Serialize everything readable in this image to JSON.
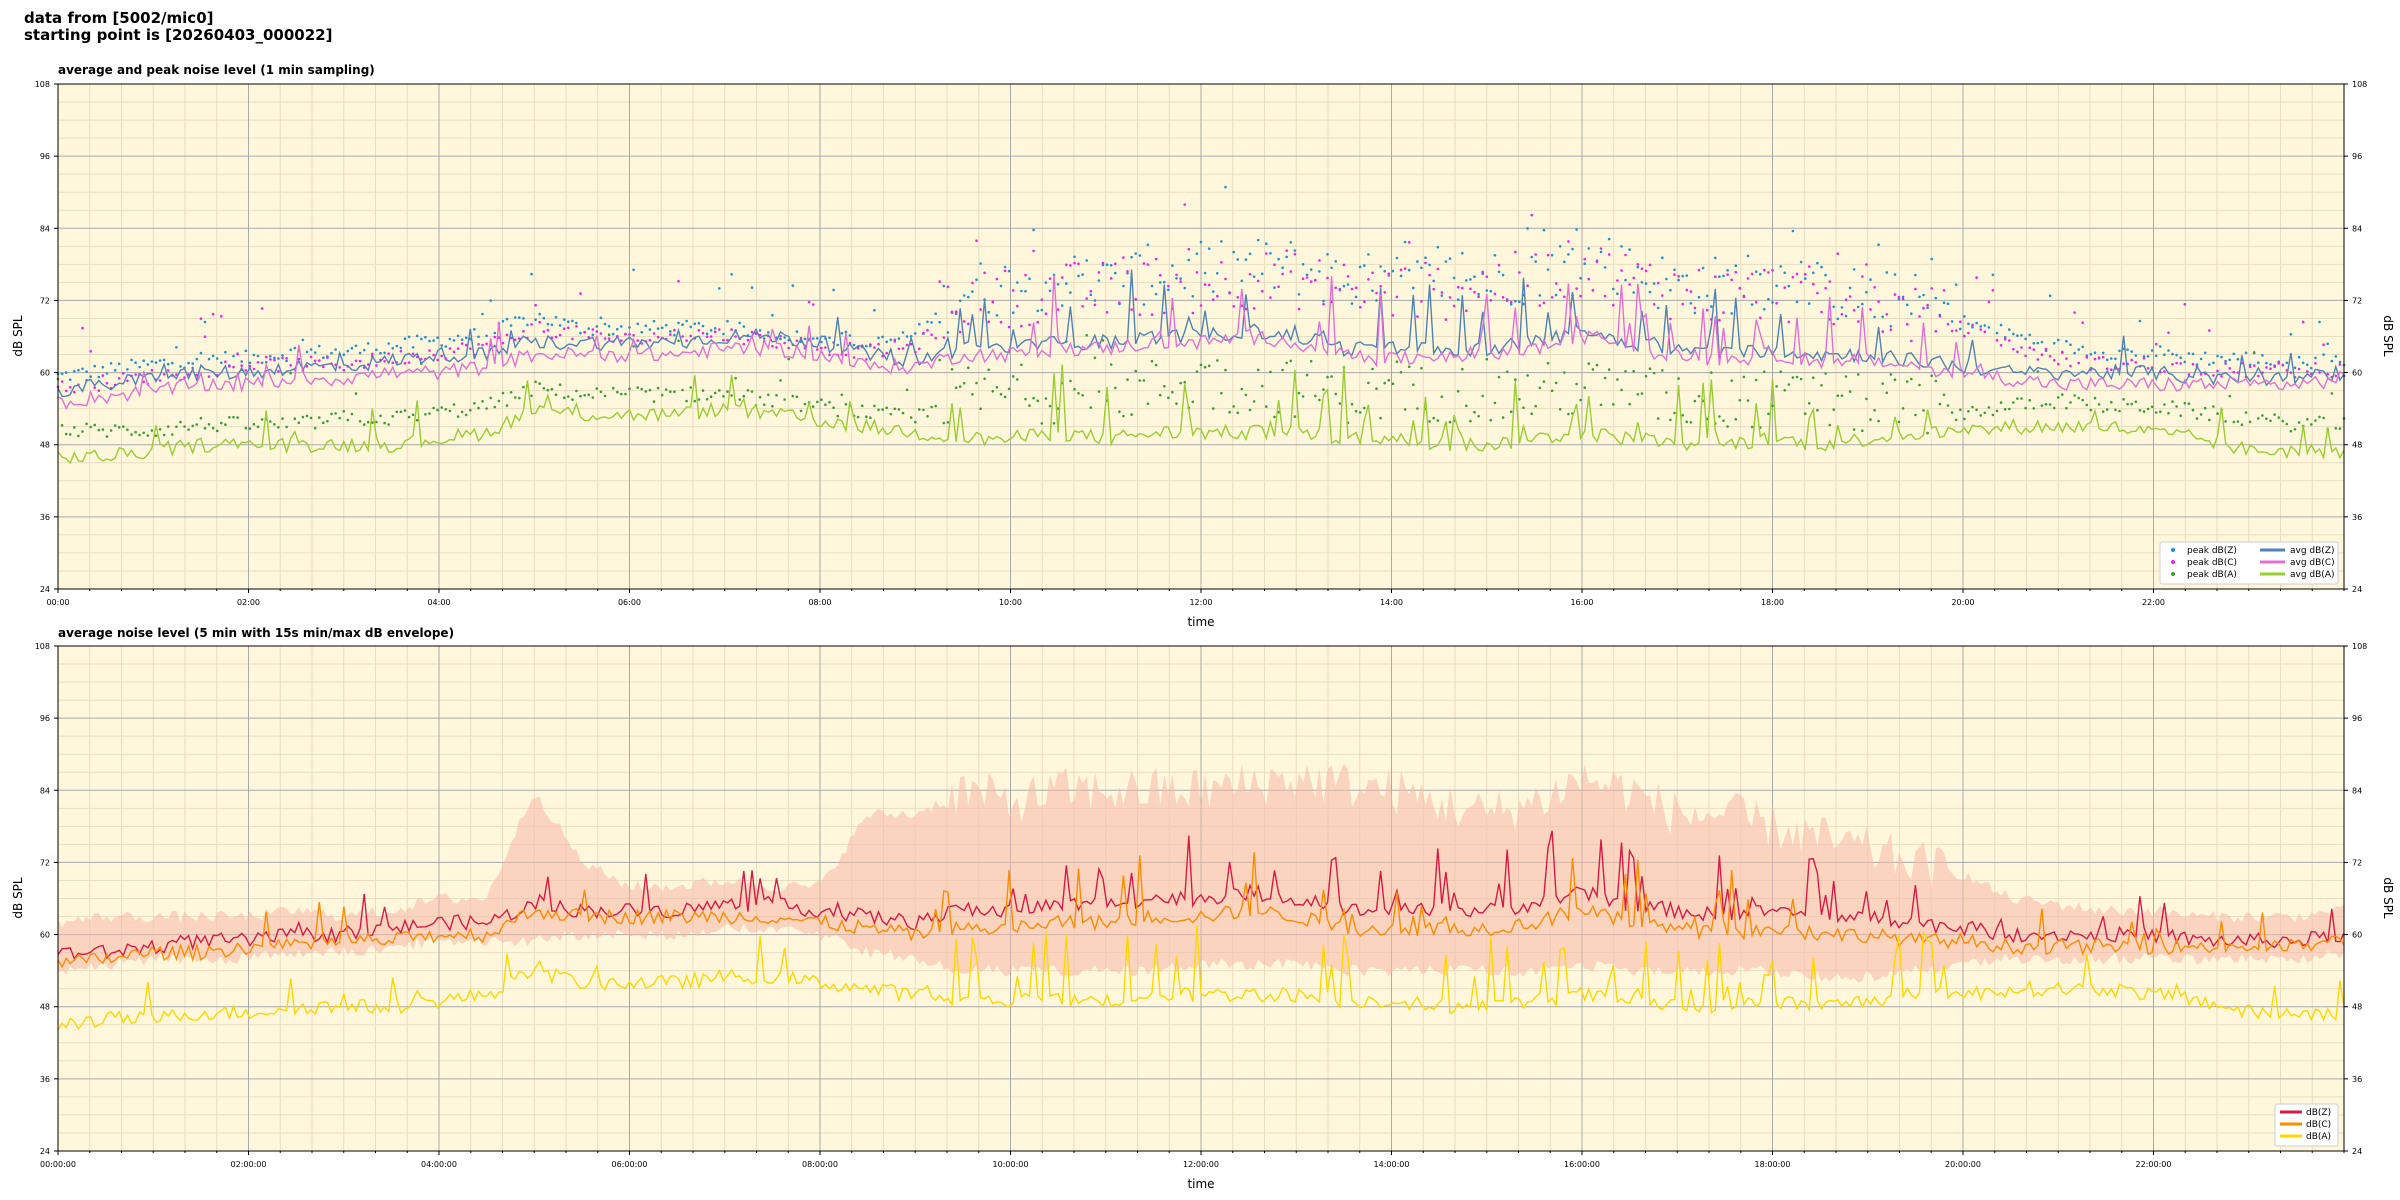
{
  "header": {
    "line1": "data from [5002/mic0]",
    "line2": "starting point is [20260403_000022]"
  },
  "colors": {
    "plot_bg": "#fff7dc",
    "grid_major": "#a9a9a9",
    "grid_minor": "#e7ddc0",
    "peak_z": "#1f8fd6",
    "peak_c": "#ee22ee",
    "peak_a": "#3c9a3c",
    "avg_z": "#4f82b6",
    "avg_c": "#e070d8",
    "avg_a": "#9acd32",
    "bottom_z": "#d81b43",
    "bottom_c": "#ff8c00",
    "bottom_a": "#ffd700",
    "envelope": "#f5b8a8"
  },
  "chart_data": [
    {
      "type": "line",
      "title": "average and peak noise level (1 min sampling)",
      "xlabel": "time",
      "ylabel": "dB SPL",
      "xlim_hours": [
        0,
        24
      ],
      "ylim": [
        24,
        108
      ],
      "yticks": [
        24,
        36,
        48,
        60,
        72,
        84,
        96,
        108
      ],
      "xtick_hours": [
        0,
        2,
        4,
        6,
        8,
        10,
        12,
        14,
        16,
        18,
        20,
        22
      ],
      "xtick_labels": [
        "00:00",
        "02:00",
        "04:00",
        "06:00",
        "08:00",
        "10:00",
        "12:00",
        "14:00",
        "16:00",
        "18:00",
        "20:00",
        "22:00"
      ],
      "grid": true,
      "legend_position": "lower-right",
      "series_style": "avg lines + peak dots",
      "x_hours": [
        0,
        0.5,
        1,
        1.5,
        2,
        2.5,
        3,
        3.5,
        4,
        4.5,
        5,
        5.5,
        6,
        6.5,
        7,
        7.5,
        8,
        8.5,
        9,
        9.5,
        10,
        10.5,
        11,
        11.5,
        12,
        12.5,
        13,
        13.5,
        14,
        14.5,
        15,
        15.5,
        16,
        16.5,
        17,
        17.5,
        18,
        18.5,
        19,
        19.5,
        20,
        20.5,
        21,
        21.5,
        22,
        22.5,
        23,
        23.5,
        24
      ],
      "series": [
        {
          "name": "peak dB(Z)",
          "kind": "dots",
          "color_key": "peak_z",
          "values": [
            59,
            60,
            61,
            62,
            62,
            63,
            63,
            64,
            65,
            66,
            69,
            67,
            67,
            67,
            67,
            66,
            66,
            64,
            66,
            72,
            73,
            74,
            73,
            75,
            75,
            76,
            76,
            74,
            73,
            74,
            74,
            75,
            77,
            75,
            73,
            73,
            74,
            72,
            71,
            70,
            68,
            66,
            64,
            63,
            63,
            62,
            62,
            61,
            62
          ]
        },
        {
          "name": "peak dB(C)",
          "kind": "dots",
          "color_key": "peak_c",
          "values": [
            57,
            58,
            59,
            60,
            61,
            61,
            61,
            62,
            63,
            64,
            67,
            66,
            65,
            66,
            66,
            65,
            64,
            63,
            64,
            70,
            71,
            72,
            72,
            73,
            73,
            74,
            74,
            72,
            72,
            72,
            73,
            74,
            76,
            74,
            72,
            71,
            72,
            71,
            70,
            68,
            67,
            64,
            62,
            61,
            61,
            60,
            60,
            60,
            60
          ]
        },
        {
          "name": "peak dB(A)",
          "kind": "dots",
          "color_key": "peak_a",
          "values": [
            50,
            50,
            50,
            51,
            51,
            51,
            52,
            52,
            53,
            54,
            57,
            56,
            56,
            56,
            56,
            55,
            54,
            53,
            52,
            55,
            55,
            55,
            55,
            56,
            57,
            56,
            56,
            55,
            55,
            55,
            55,
            55,
            56,
            55,
            54,
            54,
            54,
            54,
            53,
            53,
            53,
            54,
            55,
            54,
            54,
            53,
            52,
            51,
            51
          ]
        },
        {
          "name": "avg dB(Z)",
          "kind": "line",
          "color_key": "avg_z",
          "values": [
            57,
            58,
            59,
            60,
            60,
            61,
            61,
            62,
            63,
            63,
            65,
            65,
            65,
            65,
            66,
            66,
            65,
            63,
            62,
            64,
            64,
            65,
            65,
            66,
            66,
            67,
            66,
            64,
            64,
            64,
            64,
            65,
            67,
            65,
            64,
            63,
            64,
            63,
            63,
            62,
            61,
            60,
            60,
            60,
            60,
            59,
            59,
            59,
            60
          ]
        },
        {
          "name": "avg dB(C)",
          "kind": "line",
          "color_key": "avg_c",
          "values": [
            55,
            56,
            57,
            58,
            58,
            59,
            59,
            60,
            60,
            61,
            63,
            63,
            63,
            63,
            64,
            64,
            63,
            61,
            61,
            63,
            63,
            64,
            64,
            65,
            65,
            66,
            65,
            63,
            62,
            63,
            63,
            64,
            66,
            64,
            63,
            62,
            63,
            62,
            62,
            61,
            60,
            59,
            58,
            58,
            58,
            58,
            58,
            58,
            59
          ]
        },
        {
          "name": "avg dB(A)",
          "kind": "line",
          "color_key": "avg_a",
          "values": [
            46,
            46,
            47,
            48,
            48,
            48,
            48,
            48,
            49,
            50,
            54,
            53,
            53,
            53,
            54,
            53,
            52,
            51,
            50,
            49,
            49,
            50,
            49,
            50,
            50,
            50,
            50,
            49,
            49,
            48,
            48,
            49,
            50,
            49,
            48,
            48,
            49,
            48,
            49,
            50,
            50,
            51,
            51,
            51,
            50,
            49,
            47,
            47,
            47
          ]
        }
      ]
    },
    {
      "type": "line",
      "title": "average noise level (5 min with 15s min/max dB envelope)",
      "xlabel": "time",
      "ylabel": "dB SPL",
      "xlim_hours": [
        0,
        24
      ],
      "ylim": [
        24,
        108
      ],
      "yticks": [
        24,
        36,
        48,
        60,
        72,
        84,
        96,
        108
      ],
      "xtick_hours": [
        0,
        2,
        4,
        6,
        8,
        10,
        12,
        14,
        16,
        18,
        20,
        22
      ],
      "xtick_labels": [
        "00:00:00",
        "02:00:00",
        "04:00:00",
        "06:00:00",
        "08:00:00",
        "10:00:00",
        "12:00:00",
        "14:00:00",
        "16:00:00",
        "18:00:00",
        "20:00:00",
        "22:00:00"
      ],
      "grid": true,
      "legend_position": "lower-right",
      "series_style": "lines + min/max envelope",
      "x_hours": [
        0,
        0.5,
        1,
        1.5,
        2,
        2.5,
        3,
        3.5,
        4,
        4.5,
        5,
        5.5,
        6,
        6.5,
        7,
        7.5,
        8,
        8.5,
        9,
        9.5,
        10,
        10.5,
        11,
        11.5,
        12,
        12.5,
        13,
        13.5,
        14,
        14.5,
        15,
        15.5,
        16,
        16.5,
        17,
        17.5,
        18,
        18.5,
        19,
        19.5,
        20,
        20.5,
        21,
        21.5,
        22,
        22.5,
        23,
        23.5,
        24
      ],
      "envelope": {
        "min": [
          55,
          56,
          57,
          57,
          57,
          58,
          58,
          59,
          60,
          60,
          60,
          61,
          61,
          61,
          62,
          62,
          61,
          58,
          57,
          55,
          55,
          55,
          55,
          55,
          56,
          56,
          56,
          55,
          55,
          55,
          55,
          55,
          56,
          55,
          55,
          55,
          55,
          54,
          54,
          55,
          56,
          57,
          57,
          57,
          57,
          57,
          57,
          57,
          58
        ],
        "max": [
          62,
          63,
          63,
          63,
          63,
          64,
          63,
          64,
          66,
          66,
          84,
          72,
          68,
          68,
          69,
          68,
          68,
          80,
          80,
          84,
          82,
          84,
          84,
          84,
          84,
          85,
          86,
          85,
          84,
          82,
          80,
          82,
          86,
          84,
          80,
          80,
          78,
          76,
          74,
          72,
          70,
          66,
          65,
          64,
          64,
          63,
          63,
          63,
          64
        ]
      },
      "series": [
        {
          "name": "dB(Z)",
          "color_key": "bottom_z",
          "values": [
            57,
            57,
            58,
            59,
            59,
            60,
            60,
            61,
            62,
            62,
            65,
            64,
            64,
            64,
            65,
            65,
            64,
            63,
            62,
            64,
            64,
            65,
            65,
            66,
            66,
            67,
            66,
            64,
            64,
            64,
            64,
            65,
            67,
            65,
            64,
            63,
            64,
            63,
            63,
            62,
            61,
            60,
            60,
            60,
            60,
            59,
            59,
            59,
            60
          ]
        },
        {
          "name": "dB(C)",
          "color_key": "bottom_c",
          "values": [
            55,
            56,
            57,
            57,
            58,
            58,
            59,
            59,
            60,
            60,
            64,
            63,
            63,
            63,
            63,
            63,
            62,
            61,
            60,
            61,
            61,
            62,
            62,
            63,
            63,
            64,
            63,
            61,
            61,
            61,
            61,
            62,
            64,
            62,
            61,
            60,
            61,
            60,
            60,
            59,
            59,
            58,
            58,
            58,
            58,
            58,
            58,
            58,
            59
          ]
        },
        {
          "name": "dB(A)",
          "color_key": "bottom_a",
          "values": [
            45,
            46,
            46,
            47,
            47,
            48,
            48,
            48,
            49,
            50,
            54,
            52,
            52,
            52,
            53,
            53,
            52,
            51,
            50,
            49,
            49,
            49,
            49,
            50,
            50,
            50,
            50,
            49,
            49,
            48,
            48,
            49,
            50,
            49,
            48,
            48,
            49,
            48,
            49,
            50,
            50,
            51,
            51,
            51,
            50,
            49,
            47,
            47,
            47
          ]
        }
      ]
    }
  ],
  "legends": {
    "top": [
      "peak dB(Z)",
      "peak dB(C)",
      "peak dB(A)",
      "avg dB(Z)",
      "avg dB(C)",
      "avg dB(A)"
    ],
    "bottom": [
      "dB(Z)",
      "dB(C)",
      "dB(A)"
    ]
  }
}
